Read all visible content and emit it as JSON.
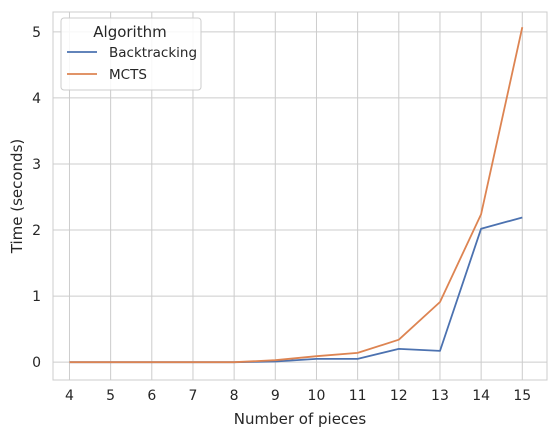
{
  "chart_data": {
    "type": "line",
    "xlabel": "Number of pieces",
    "ylabel": "Time (seconds)",
    "x": [
      4,
      5,
      6,
      7,
      8,
      9,
      10,
      11,
      12,
      13,
      14,
      15
    ],
    "xticks": [
      "4",
      "5",
      "6",
      "7",
      "8",
      "9",
      "10",
      "11",
      "12",
      "13",
      "14",
      "15"
    ],
    "yticks": [
      "0",
      "1",
      "2",
      "3",
      "4",
      "5"
    ],
    "xlim": [
      3.6,
      15.6
    ],
    "ylim": [
      -0.27,
      5.3
    ],
    "grid": true,
    "legend": {
      "title": "Algorithm",
      "placement": "top-left"
    },
    "series": [
      {
        "name": "Backtracking",
        "color": "#4c72b0",
        "values": [
          0.0,
          0.0,
          0.0,
          0.0,
          0.0,
          0.01,
          0.05,
          0.05,
          0.2,
          0.17,
          2.02,
          2.19
        ]
      },
      {
        "name": "MCTS",
        "color": "#dd8452",
        "values": [
          0.0,
          0.0,
          0.0,
          0.0,
          0.0,
          0.03,
          0.09,
          0.14,
          0.34,
          0.91,
          2.24,
          5.07
        ]
      }
    ]
  }
}
